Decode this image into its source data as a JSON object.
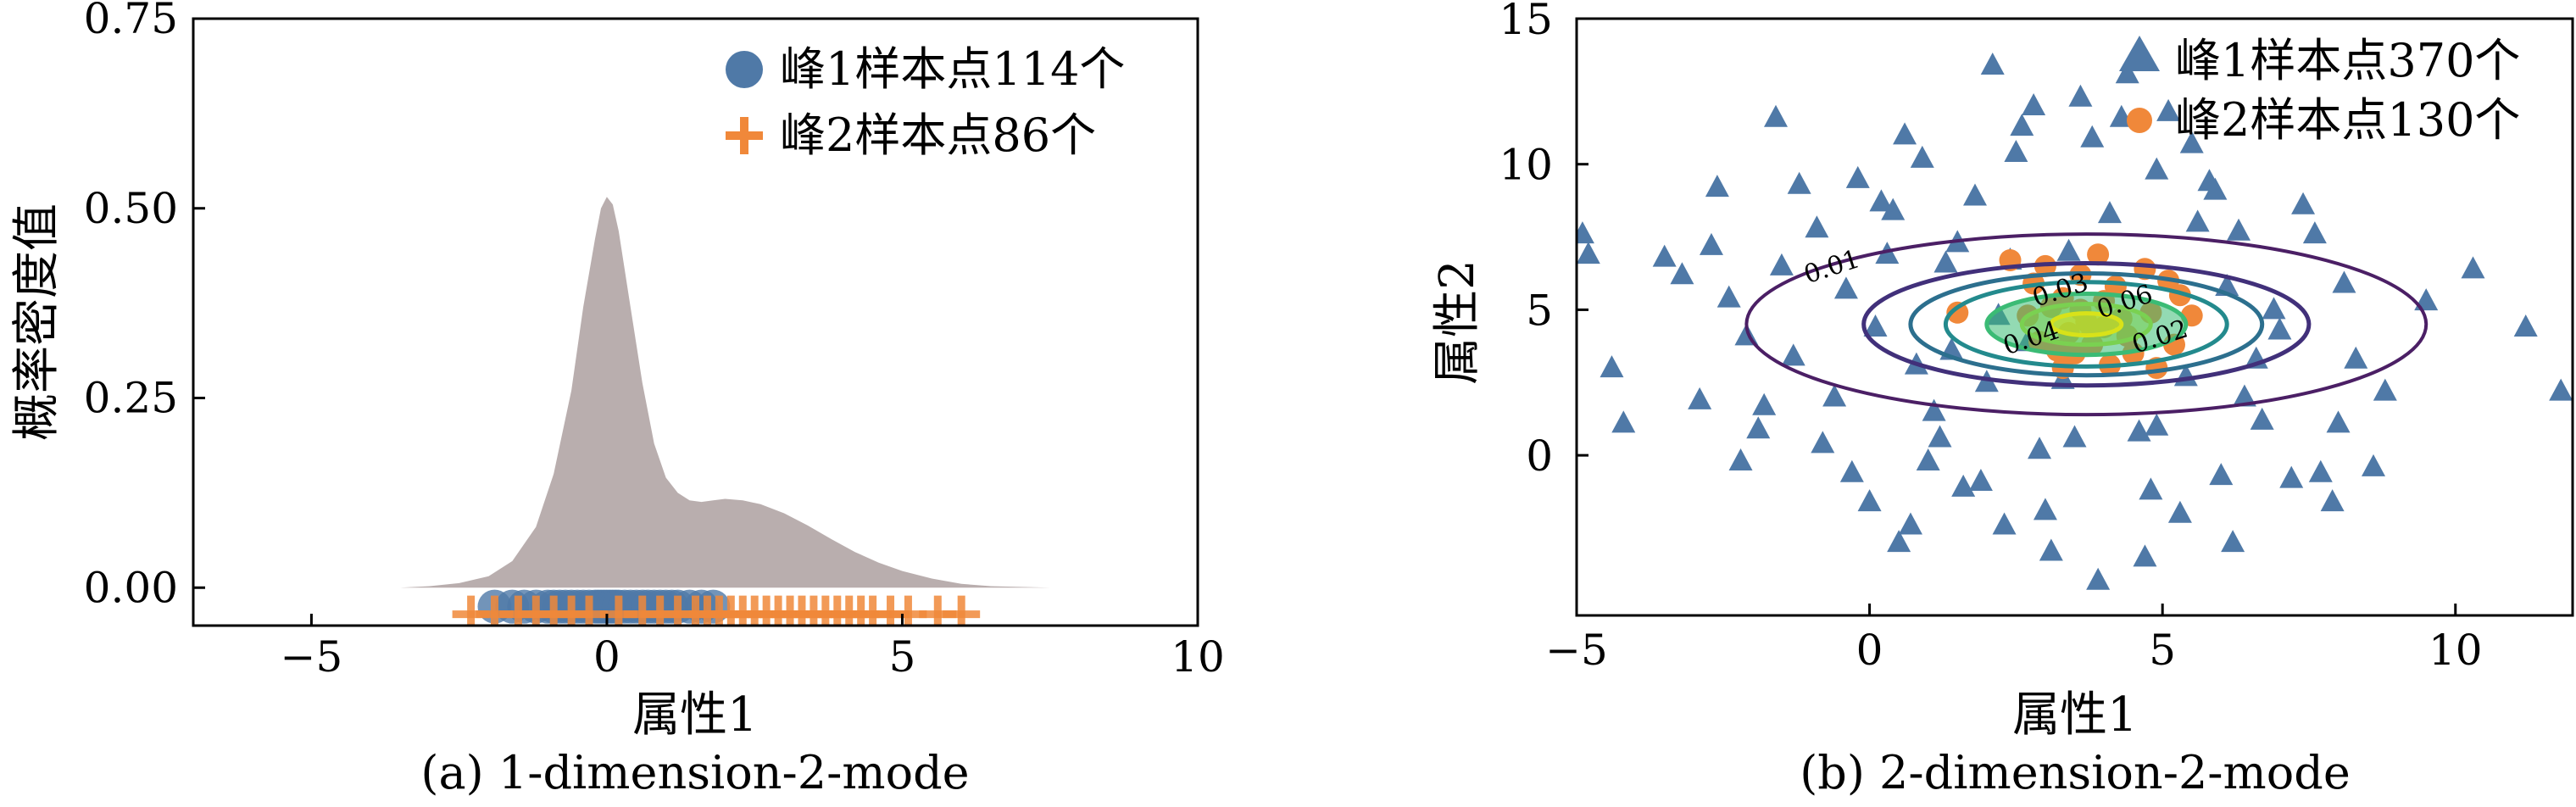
{
  "chart_data": [
    {
      "type": "area",
      "subtype": "kde-with-rug",
      "caption": "(a) 1-dimension-2-mode",
      "xlabel": "属性1",
      "ylabel": "概率密度值",
      "xlim": [
        -7,
        10
      ],
      "ylim": [
        -0.05,
        0.75
      ],
      "xticks": [
        -5,
        0,
        5,
        10
      ],
      "xtick_labels": [
        "−5",
        "0",
        "5",
        "10"
      ],
      "yticks": [
        0.0,
        0.25,
        0.5,
        0.75
      ],
      "ytick_labels": [
        "0.00",
        "0.25",
        "0.50",
        "0.75"
      ],
      "legend_placement": "top-right",
      "density": {
        "color": "#b9aeae",
        "x": [
          -3.5,
          -3.0,
          -2.5,
          -2.0,
          -1.6,
          -1.2,
          -0.9,
          -0.6,
          -0.4,
          -0.2,
          -0.1,
          0.0,
          0.1,
          0.2,
          0.4,
          0.6,
          0.8,
          1.0,
          1.2,
          1.4,
          1.6,
          1.8,
          2.0,
          2.3,
          2.6,
          3.0,
          3.4,
          3.8,
          4.2,
          4.6,
          5.0,
          5.5,
          6.0,
          6.5,
          7.0,
          7.5
        ],
        "y": [
          0.0,
          0.002,
          0.006,
          0.015,
          0.035,
          0.08,
          0.15,
          0.26,
          0.37,
          0.46,
          0.5,
          0.515,
          0.505,
          0.47,
          0.37,
          0.27,
          0.19,
          0.145,
          0.125,
          0.115,
          0.113,
          0.115,
          0.117,
          0.115,
          0.11,
          0.098,
          0.082,
          0.064,
          0.047,
          0.033,
          0.022,
          0.012,
          0.005,
          0.002,
          0.001,
          0.0
        ]
      },
      "series": [
        {
          "name": "峰1样本点114个",
          "marker": "circle",
          "color": "#4f79a7",
          "x": [
            -1.9,
            -1.6,
            -1.4,
            -1.2,
            -1.0,
            -0.9,
            -0.8,
            -0.7,
            -0.6,
            -0.5,
            -0.4,
            -0.3,
            -0.2,
            -0.15,
            -0.1,
            -0.05,
            0.0,
            0.05,
            0.1,
            0.15,
            0.2,
            0.3,
            0.4,
            0.5,
            0.6,
            0.7,
            0.8,
            0.9,
            1.0,
            1.1,
            1.2,
            1.4,
            1.6,
            1.8
          ],
          "y": [
            -0.025,
            -0.025,
            -0.025,
            -0.025,
            -0.025,
            -0.025,
            -0.025,
            -0.025,
            -0.025,
            -0.025,
            -0.025,
            -0.025,
            -0.025,
            -0.025,
            -0.025,
            -0.025,
            -0.025,
            -0.025,
            -0.025,
            -0.025,
            -0.025,
            -0.025,
            -0.025,
            -0.025,
            -0.025,
            -0.025,
            -0.025,
            -0.025,
            -0.025,
            -0.025,
            -0.025,
            -0.025,
            -0.025,
            -0.025
          ]
        },
        {
          "name": "峰2样本点86个",
          "marker": "plus",
          "color": "#f0883a",
          "x": [
            -2.3,
            -1.9,
            -1.5,
            -1.2,
            -0.9,
            -0.6,
            -0.3,
            0.2,
            0.6,
            0.9,
            1.2,
            1.5,
            1.7,
            1.9,
            2.1,
            2.3,
            2.5,
            2.7,
            2.9,
            3.1,
            3.3,
            3.5,
            3.7,
            3.9,
            4.1,
            4.3,
            4.5,
            4.8,
            5.1,
            5.6,
            6.0
          ],
          "y": [
            -0.035,
            -0.035,
            -0.035,
            -0.035,
            -0.035,
            -0.035,
            -0.035,
            -0.035,
            -0.035,
            -0.035,
            -0.035,
            -0.035,
            -0.035,
            -0.035,
            -0.035,
            -0.035,
            -0.035,
            -0.035,
            -0.035,
            -0.035,
            -0.035,
            -0.035,
            -0.035,
            -0.035,
            -0.035,
            -0.035,
            -0.035,
            -0.035,
            -0.035,
            -0.035,
            -0.035
          ]
        }
      ]
    },
    {
      "type": "scatter",
      "subtype": "scatter-with-density-contours",
      "caption": "(b) 2-dimension-2-mode",
      "xlabel": "属性1",
      "ylabel": "属性2",
      "xlim": [
        -5,
        12
      ],
      "ylim": [
        -5.5,
        15
      ],
      "xticks": [
        -5,
        0,
        5,
        10
      ],
      "xtick_labels": [
        "−5",
        "0",
        "5",
        "10"
      ],
      "yticks": [
        0,
        5,
        10,
        15
      ],
      "ytick_labels": [
        "0",
        "5",
        "10",
        "15"
      ],
      "legend_placement": "top-right",
      "series": [
        {
          "name": "峰1样本点370个",
          "marker": "triangle",
          "color": "#4f79a7",
          "x": [
            -4.9,
            -4.8,
            -4.4,
            -4.2,
            -3.5,
            -3.2,
            -2.9,
            -2.7,
            -2.6,
            -2.4,
            -2.1,
            -1.9,
            -1.6,
            -1.5,
            -1.3,
            -0.9,
            -0.6,
            -0.4,
            -0.2,
            0.0,
            0.1,
            0.4,
            0.5,
            0.8,
            0.9,
            1.2,
            1.3,
            1.6,
            1.8,
            2.0,
            2.1,
            2.3,
            2.5,
            2.8,
            2.9,
            3.1,
            3.4,
            3.6,
            3.9,
            4.1,
            4.4,
            4.7,
            4.9,
            5.3,
            5.5,
            5.8,
            6.0,
            6.3,
            6.6,
            6.9,
            7.2,
            7.6,
            8.1,
            8.3,
            8.8,
            9.5,
            10.3,
            11.2,
            11.8,
            -1.2,
            -0.3,
            0.6,
            1.5,
            2.6,
            3.3,
            4.8,
            6.1,
            7.4,
            8.6,
            0.3,
            1.1,
            2.2,
            5.1,
            6.7,
            7.9,
            -2.2,
            -0.8,
            1.9,
            3.8,
            5.6,
            6.4,
            0.7,
            2.4,
            4.3,
            5.9,
            7.0,
            1.4,
            3.0,
            4.6,
            6.2,
            -1.8,
            0.2,
            2.7,
            4.9,
            8.0,
            1.0,
            3.5,
            5.4,
            7.7
          ],
          "y": [
            7.6,
            6.9,
            3.0,
            1.1,
            6.8,
            6.2,
            1.9,
            7.2,
            9.2,
            5.4,
            4.1,
            0.9,
            11.6,
            6.5,
            3.4,
            7.8,
            2.0,
            5.7,
            9.5,
            -1.6,
            4.4,
            8.4,
            -3.0,
            3.1,
            10.2,
            0.6,
            6.6,
            -1.1,
            8.9,
            2.5,
            13.4,
            -2.4,
            10.4,
            12.0,
            0.2,
            -3.3,
            7.0,
            12.3,
            -4.3,
            8.3,
            13.1,
            -3.5,
            9.8,
            -2.0,
            10.7,
            9.4,
            -0.7,
            7.7,
            3.3,
            5.0,
            -0.8,
            7.6,
            5.9,
            3.3,
            2.2,
            5.3,
            6.4,
            4.4,
            2.2,
            9.3,
            -0.6,
            11.0,
            7.3,
            11.3,
            2.6,
            -1.2,
            5.8,
            8.6,
            -0.4,
            6.9,
            1.5,
            4.8,
            11.8,
            1.2,
            -1.6,
            -0.2,
            0.4,
            -0.9,
            10.9,
            8.0,
            2.0,
            -2.4,
            6.7,
            11.6,
            9.1,
            4.3,
            3.6,
            -1.9,
            0.8,
            -3.0,
            1.7,
            8.7,
            3.9,
            1.0,
            1.1,
            -0.2,
            0.6,
            2.7,
            -0.6
          ]
        },
        {
          "name": "峰2样本点130个",
          "marker": "circle",
          "color": "#f0883a",
          "x": [
            1.5,
            2.4,
            2.7,
            2.9,
            3.0,
            3.2,
            3.3,
            3.4,
            3.5,
            3.6,
            3.7,
            3.8,
            3.9,
            4.0,
            4.1,
            4.2,
            4.3,
            4.5,
            4.7,
            4.9,
            5.1,
            5.3,
            5.5,
            2.8,
            3.1,
            3.6,
            4.4,
            4.8,
            5.2,
            3.3,
            4.0,
            3.8
          ],
          "y": [
            4.9,
            6.7,
            4.8,
            3.9,
            6.5,
            3.6,
            5.4,
            4.2,
            3.5,
            5.0,
            4.6,
            3.8,
            6.9,
            4.4,
            3.1,
            5.8,
            4.7,
            3.5,
            6.4,
            3.0,
            6.0,
            5.5,
            4.8,
            5.9,
            5.1,
            6.2,
            4.1,
            4.9,
            3.8,
            3.0,
            5.3,
            4.3
          ]
        }
      ],
      "contours": {
        "center": [
          3.7,
          4.5
        ],
        "levels": [
          0.01,
          0.02,
          0.03,
          0.04,
          0.06,
          0.07,
          0.08
        ],
        "labeled_levels": [
          "0.01",
          "0.02",
          "0.03",
          "0.04",
          "0.06"
        ],
        "radii": [
          [
            5.8,
            3.1
          ],
          [
            3.8,
            2.1
          ],
          [
            3.0,
            1.75
          ],
          [
            2.4,
            1.45
          ],
          [
            1.7,
            1.05
          ],
          [
            1.1,
            0.7
          ],
          [
            0.6,
            0.38
          ]
        ],
        "colors": [
          "#4b1f65",
          "#41307a",
          "#2c6f8e",
          "#238a8d",
          "#3bbb75",
          "#7ad151",
          "#d8e219"
        ]
      }
    }
  ]
}
